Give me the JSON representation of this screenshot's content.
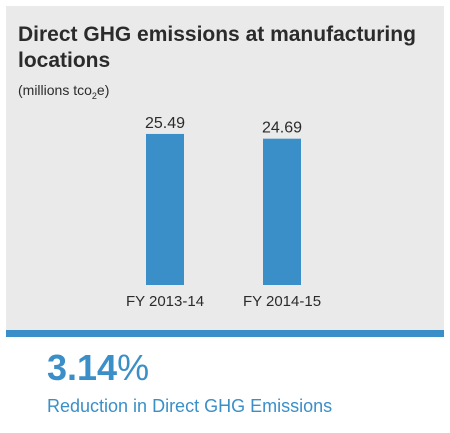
{
  "colors": {
    "panel_bg": "#eaeaea",
    "bar": "#3a8fc8",
    "accent": "#3a8fc8",
    "text": "#2b2b2b"
  },
  "chart_data": {
    "type": "bar",
    "title": "Direct GHG emissions at manufacturing locations",
    "subtitle_prefix": "(millions tco",
    "subtitle_sub": "2",
    "subtitle_suffix": "e)",
    "categories": [
      "FY 2013-14",
      "FY 2014-15"
    ],
    "values": [
      25.49,
      24.69
    ],
    "value_labels": [
      "25.49",
      "24.69"
    ],
    "ylim": [
      0,
      27
    ],
    "grid": false,
    "legend": false
  },
  "summary": {
    "percent_value": "3.14",
    "percent_symbol": "%",
    "caption": "Reduction in Direct GHG Emissions"
  }
}
